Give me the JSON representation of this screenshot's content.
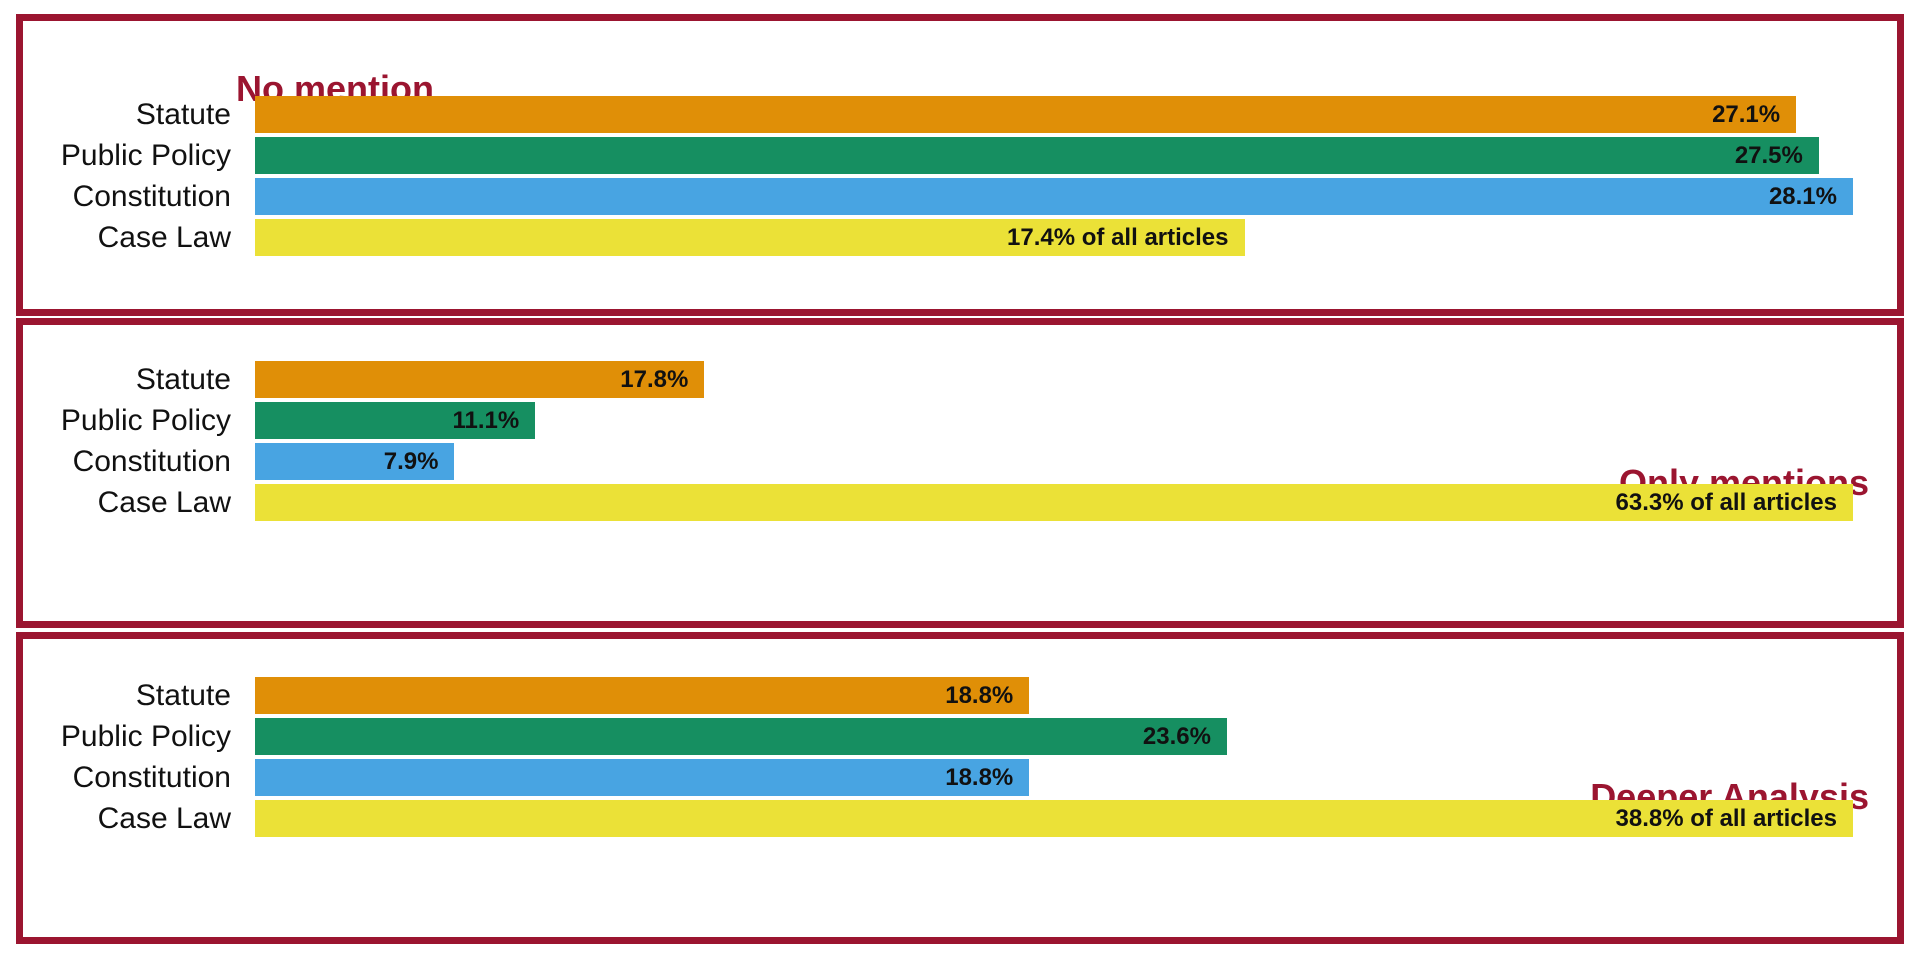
{
  "chart_data": {
    "type": "bar",
    "orientation": "horizontal",
    "categories": [
      "Statute",
      "Public Policy",
      "Constitution",
      "Case Law"
    ],
    "colors": {
      "Statute": "#E08F07",
      "Public Policy": "#168F61",
      "Constitution": "#48A4E2",
      "Case Law": "#EBE137",
      "frame": "#9B1530"
    },
    "panels": [
      {
        "title": "No mention",
        "title_position": "top-left",
        "values": [
          27.1,
          27.5,
          28.1,
          17.4
        ],
        "labels": [
          "27.1%",
          "27.5%",
          "28.1%",
          "17.4% of all articles"
        ]
      },
      {
        "title": "Only mentions",
        "title_position": "right",
        "values": [
          17.8,
          11.1,
          7.9,
          63.3
        ],
        "labels": [
          "17.8%",
          "11.1%",
          "7.9%",
          "63.3% of all articles"
        ]
      },
      {
        "title": "Deeper Analysis",
        "title_position": "right",
        "values": [
          18.8,
          23.6,
          18.8,
          38.8
        ],
        "labels": [
          "18.8%",
          "23.6%",
          "18.8%",
          "38.8% of all articles"
        ]
      }
    ]
  }
}
